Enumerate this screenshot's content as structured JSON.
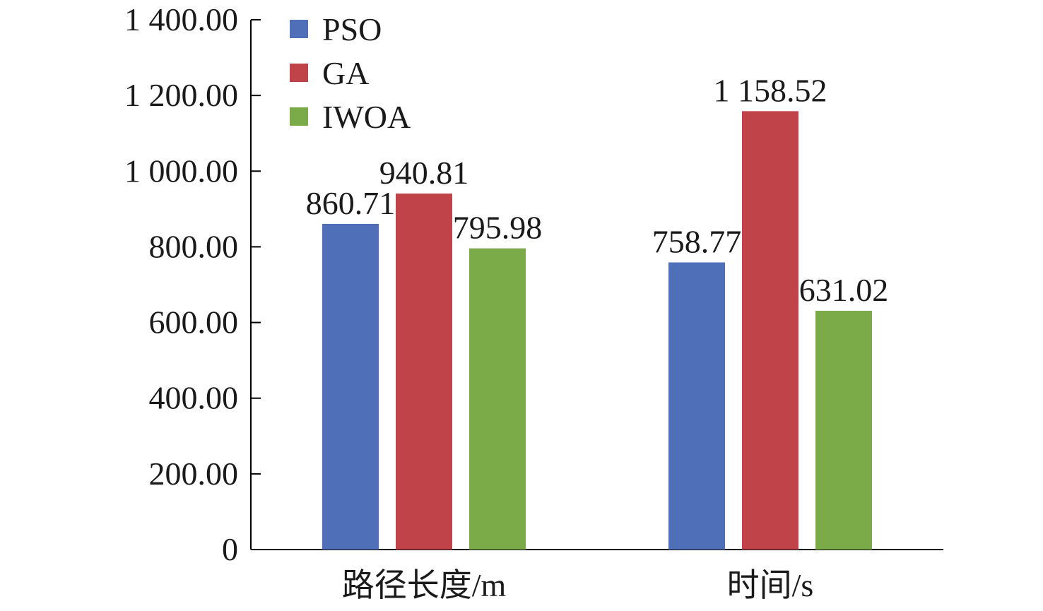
{
  "chart_data": {
    "type": "bar",
    "categories": [
      "路径长度/m",
      "时间/s"
    ],
    "series": [
      {
        "name": "PSO",
        "values": [
          860.71,
          758.77
        ],
        "labels": [
          "860.71",
          "758.77"
        ],
        "color": "#4f6fb8"
      },
      {
        "name": "GA",
        "values": [
          940.81,
          1158.52
        ],
        "labels": [
          "940.81",
          "1 158.52"
        ],
        "color": "#c0434a"
      },
      {
        "name": "IWOA",
        "values": [
          795.98,
          631.02
        ],
        "labels": [
          "795.98",
          "631.02"
        ],
        "color": "#7aab48"
      }
    ],
    "yticks": [
      {
        "value": 0,
        "label": "0"
      },
      {
        "value": 200,
        "label": "200.00"
      },
      {
        "value": 400,
        "label": "400.00"
      },
      {
        "value": 600,
        "label": "600.00"
      },
      {
        "value": 800,
        "label": "800.00"
      },
      {
        "value": 1000,
        "label": "1 000.00"
      },
      {
        "value": 1200,
        "label": "1 200.00"
      },
      {
        "value": 1400,
        "label": "1 400.00"
      }
    ],
    "ylim": [
      0,
      1400
    ],
    "legend_position": "top-left",
    "grid": false,
    "title": "",
    "xlabel": "",
    "ylabel": ""
  }
}
